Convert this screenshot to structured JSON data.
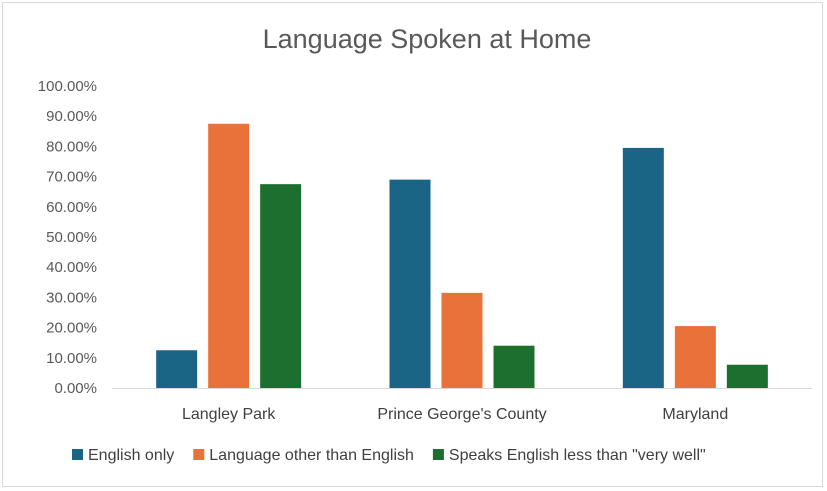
{
  "chart_data": {
    "type": "bar",
    "title": "Language Spoken at Home",
    "categories": [
      "Langley Park",
      "Prince George's County",
      "Maryland"
    ],
    "series": [
      {
        "name": "English only",
        "values": [
          12.5,
          69.0,
          79.5
        ]
      },
      {
        "name": "Language other than English",
        "values": [
          87.5,
          31.5,
          20.5
        ]
      },
      {
        "name": "Speaks English less than \"very well\"",
        "values": [
          67.5,
          14.0,
          7.7
        ]
      }
    ],
    "ylim": [
      0,
      100
    ],
    "yticks": [
      "0.00%",
      "10.00%",
      "20.00%",
      "30.00%",
      "40.00%",
      "50.00%",
      "60.00%",
      "70.00%",
      "80.00%",
      "90.00%",
      "100.00%"
    ],
    "xlabel": "",
    "ylabel": "",
    "grid": false,
    "legend_position": "bottom"
  },
  "colors": {
    "English only": "#1a6485",
    "Language other than English": "#e9713a",
    "Speaks English less than \"very well\"": "#1c6f2e"
  }
}
